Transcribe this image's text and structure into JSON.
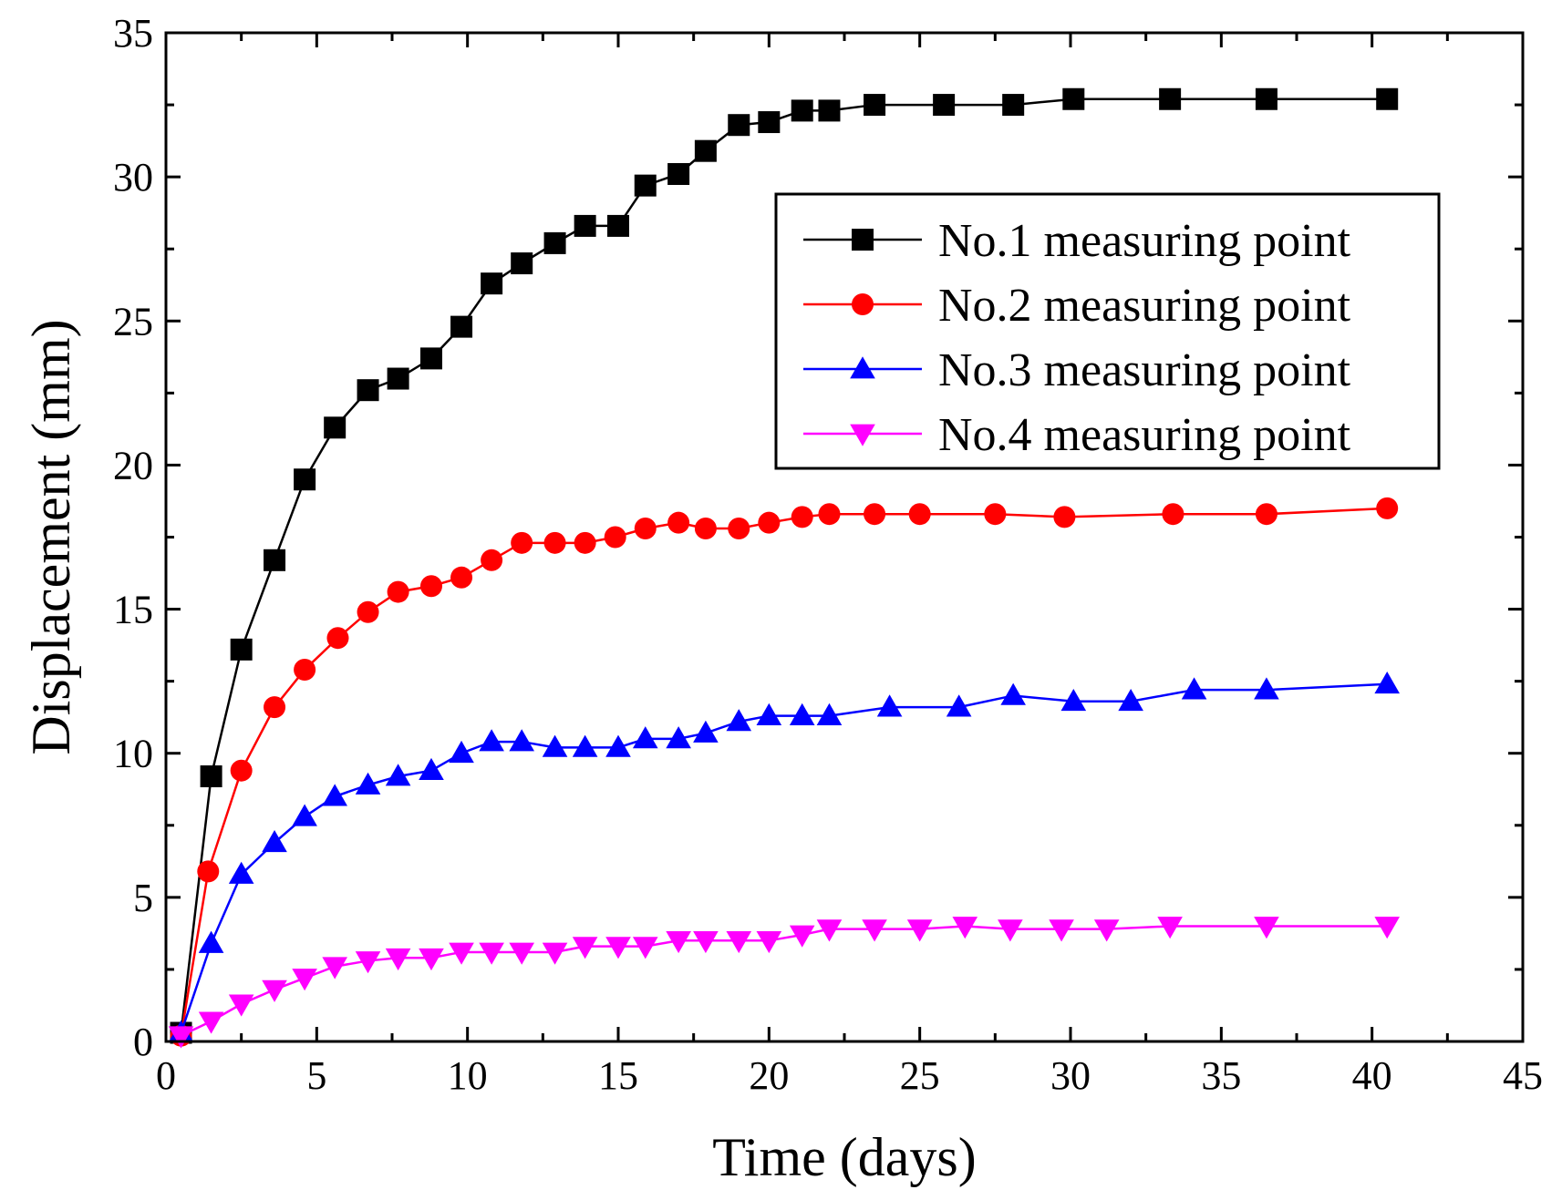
{
  "chart_data": {
    "type": "line",
    "title": "",
    "xlabel": "Time (days)",
    "ylabel": "Displacement (mm)",
    "xlim": [
      0,
      45
    ],
    "ylim": [
      0,
      35
    ],
    "xticks": [
      0,
      5,
      10,
      15,
      20,
      25,
      30,
      35,
      40,
      45
    ],
    "yticks": [
      0,
      5,
      10,
      15,
      20,
      25,
      30,
      35
    ],
    "grid": false,
    "legend_position": "top-right",
    "series": [
      {
        "name": "No.1 measuring point",
        "color": "#000000",
        "marker": "square",
        "x": [
          0.5,
          1.5,
          2.5,
          3.6,
          4.6,
          5.6,
          6.7,
          7.7,
          8.8,
          9.8,
          10.8,
          11.8,
          12.9,
          13.9,
          15.0,
          15.9,
          17.0,
          17.9,
          19.0,
          20.0,
          21.1,
          22.0,
          23.5,
          25.8,
          28.1,
          30.1,
          33.3,
          36.5,
          40.5
        ],
        "y": [
          0.3,
          9.2,
          13.6,
          16.7,
          19.5,
          21.3,
          22.6,
          23.0,
          23.7,
          24.8,
          26.3,
          27.0,
          27.7,
          28.3,
          28.3,
          29.7,
          30.1,
          30.9,
          31.8,
          31.9,
          32.3,
          32.3,
          32.5,
          32.5,
          32.5,
          32.7,
          32.7,
          32.7,
          32.7
        ]
      },
      {
        "name": "No.2 measuring point",
        "color": "#ff0000",
        "marker": "circle",
        "x": [
          0.5,
          1.4,
          2.5,
          3.6,
          4.6,
          5.7,
          6.7,
          7.7,
          8.8,
          9.8,
          10.8,
          11.8,
          12.9,
          13.9,
          14.9,
          15.9,
          17.0,
          17.9,
          19.0,
          20.0,
          21.1,
          22.0,
          23.5,
          25.0,
          27.5,
          29.8,
          33.4,
          36.5,
          40.5
        ],
        "y": [
          0.2,
          5.9,
          9.4,
          11.6,
          12.9,
          14.0,
          14.9,
          15.6,
          15.8,
          16.1,
          16.7,
          17.3,
          17.3,
          17.3,
          17.5,
          17.8,
          18.0,
          17.8,
          17.8,
          18.0,
          18.2,
          18.3,
          18.3,
          18.3,
          18.3,
          18.2,
          18.3,
          18.3,
          18.5
        ]
      },
      {
        "name": "No.3 measuring point",
        "color": "#0000ff",
        "marker": "triangle-up",
        "x": [
          0.5,
          1.5,
          2.5,
          3.6,
          4.6,
          5.6,
          6.7,
          7.7,
          8.8,
          9.8,
          10.8,
          11.8,
          12.9,
          13.9,
          15.0,
          15.9,
          17.0,
          17.9,
          19.0,
          20.0,
          21.1,
          22.0,
          24.0,
          26.3,
          28.1,
          30.1,
          32.0,
          34.1,
          36.5,
          40.5
        ],
        "y": [
          0.3,
          3.4,
          5.8,
          6.9,
          7.8,
          8.5,
          8.9,
          9.2,
          9.4,
          10.0,
          10.4,
          10.4,
          10.2,
          10.2,
          10.2,
          10.5,
          10.5,
          10.7,
          11.1,
          11.3,
          11.3,
          11.3,
          11.6,
          11.6,
          12.0,
          11.8,
          11.8,
          12.2,
          12.2,
          12.4
        ]
      },
      {
        "name": "No.4 measuring point",
        "color": "#ff00ff",
        "marker": "triangle-down",
        "x": [
          0.5,
          1.5,
          2.5,
          3.6,
          4.6,
          5.6,
          6.7,
          7.7,
          8.8,
          9.8,
          10.8,
          11.8,
          12.9,
          13.9,
          15.0,
          15.9,
          17.0,
          17.9,
          19.0,
          20.0,
          21.1,
          22.0,
          23.5,
          25.0,
          26.5,
          28.0,
          29.7,
          31.2,
          33.3,
          36.5,
          40.5
        ],
        "y": [
          0.2,
          0.7,
          1.3,
          1.8,
          2.2,
          2.6,
          2.8,
          2.9,
          2.9,
          3.1,
          3.1,
          3.1,
          3.1,
          3.3,
          3.3,
          3.3,
          3.5,
          3.5,
          3.5,
          3.5,
          3.7,
          3.9,
          3.9,
          3.9,
          4.0,
          3.9,
          3.9,
          3.9,
          4.0,
          4.0,
          4.0
        ]
      }
    ]
  }
}
